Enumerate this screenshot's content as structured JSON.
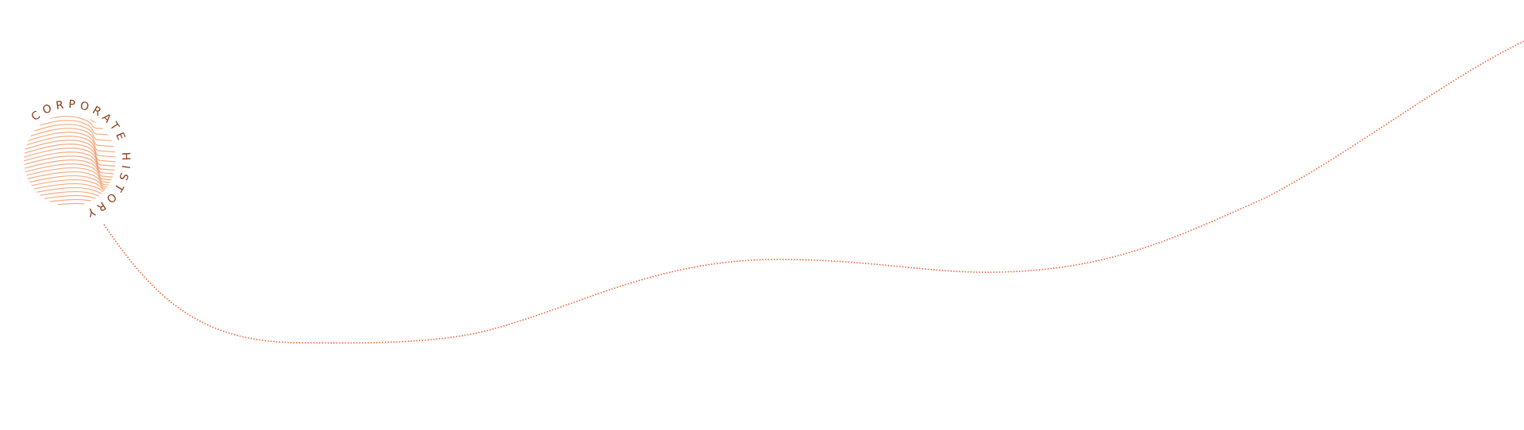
{
  "logo": {
    "text": "CORPORATE HISTORY",
    "text_color": "#8b3a1a",
    "line_color": "#f6ad82",
    "accent_line_color": "#e8743a"
  },
  "timeline": {
    "dot_color": "#e8582a"
  }
}
